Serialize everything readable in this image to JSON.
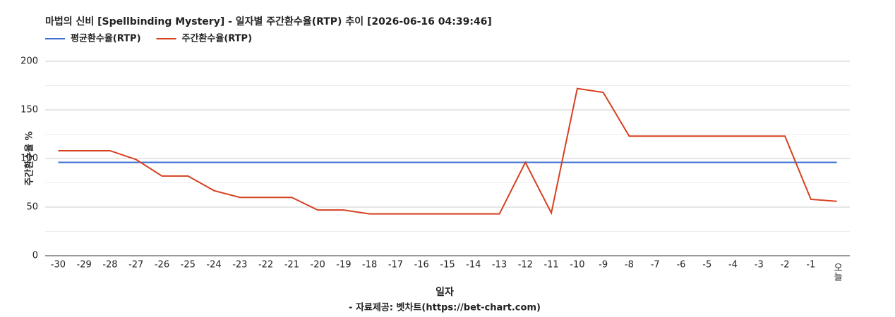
{
  "chart_data": {
    "type": "line",
    "title": "마법의 신비 [Spellbinding Mystery] - 일자별 주간환수율(RTP) 추이 [2026-06-16 04:39:46]",
    "x_label": "일자",
    "y_label": "주간환수율 %",
    "source": "- 자료제공: 벳차트(https://bet-chart.com)",
    "categories": [
      "-30",
      "-29",
      "-28",
      "-27",
      "-26",
      "-25",
      "-24",
      "-23",
      "-22",
      "-21",
      "-20",
      "-19",
      "-18",
      "-17",
      "-16",
      "-15",
      "-14",
      "-13",
      "-12",
      "-11",
      "-10",
      "-9",
      "-8",
      "-7",
      "-6",
      "-5",
      "-4",
      "-3",
      "-2",
      "-1",
      "오늘"
    ],
    "series": [
      {
        "name": "평균환수율(RTP)",
        "color": "#3f6fd1",
        "values": [
          96,
          96,
          96,
          96,
          96,
          96,
          96,
          96,
          96,
          96,
          96,
          96,
          96,
          96,
          96,
          96,
          96,
          96,
          96,
          96,
          96,
          96,
          96,
          96,
          96,
          96,
          96,
          96,
          96,
          96,
          96
        ]
      },
      {
        "name": "주간환수율(RTP)",
        "color": "#d6401f",
        "values": [
          108,
          108,
          108,
          99,
          82,
          82,
          67,
          60,
          60,
          60,
          47,
          47,
          43,
          43,
          43,
          43,
          43,
          43,
          96,
          44,
          172,
          168,
          123,
          123,
          123,
          123,
          123,
          123,
          123,
          58,
          56
        ]
      }
    ],
    "ylim": [
      0,
      200
    ],
    "yticks": [
      0,
      50,
      100,
      150,
      200
    ],
    "minor_yticks": [
      25,
      75,
      125,
      175
    ],
    "grid": true,
    "legend": "top-left"
  }
}
